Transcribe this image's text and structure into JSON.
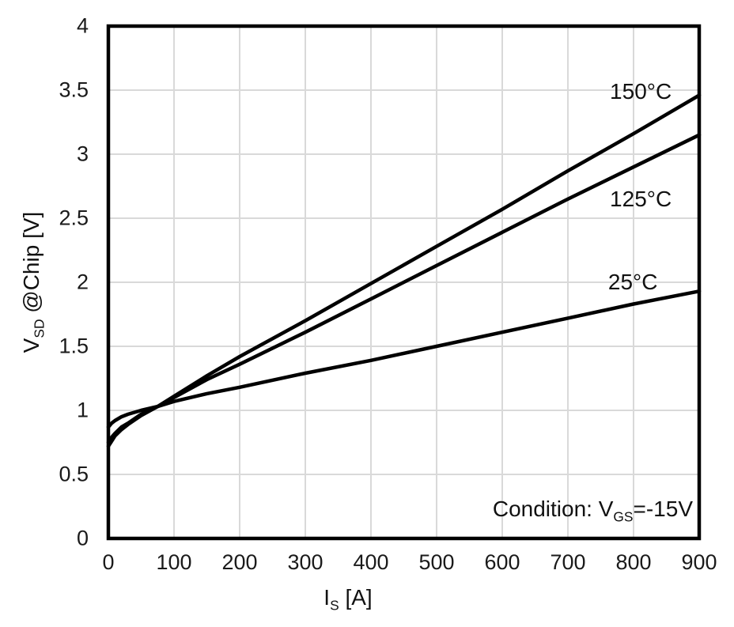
{
  "labels": {
    "ylabel": {
      "pre": "V",
      "sub": "SD",
      "post": " @Chip [V]"
    },
    "xlabel": {
      "pre": "I",
      "sub": "S",
      "post": " [A]"
    },
    "condition": {
      "pre": "Condition: V",
      "sub": "GS",
      "post": "=-15V"
    }
  },
  "colors": {
    "curve": "#000000",
    "grid": "#d9d9d9",
    "border": "#000000",
    "background": "#ffffff",
    "text": "#111111"
  },
  "chart_data": {
    "type": "line",
    "title": "",
    "xlabel": "I_S [A]",
    "ylabel": "V_SD @Chip [V]",
    "annotation": "Condition: V_GS=-15V",
    "xlim": [
      0,
      900
    ],
    "ylim": [
      0,
      4
    ],
    "xticks": [
      0,
      100,
      200,
      300,
      400,
      500,
      600,
      700,
      800,
      900
    ],
    "yticks": [
      0,
      0.5,
      1,
      1.5,
      2,
      2.5,
      3,
      3.5,
      4
    ],
    "grid": true,
    "legend_position": "inline-labels",
    "x": [
      0,
      5,
      10,
      20,
      30,
      50,
      75,
      100,
      150,
      200,
      300,
      400,
      500,
      600,
      700,
      800,
      900
    ],
    "series": [
      {
        "id": "150c",
        "name": "150°C",
        "label_x": 811,
        "label_y": 3.49,
        "values": [
          0.72,
          0.76,
          0.8,
          0.85,
          0.89,
          0.96,
          1.03,
          1.11,
          1.27,
          1.42,
          1.7,
          1.99,
          2.28,
          2.57,
          2.87,
          3.16,
          3.46
        ]
      },
      {
        "id": "125c",
        "name": "125°C",
        "label_x": 811,
        "label_y": 2.65,
        "values": [
          0.75,
          0.79,
          0.82,
          0.87,
          0.9,
          0.97,
          1.03,
          1.1,
          1.24,
          1.36,
          1.61,
          1.87,
          2.13,
          2.39,
          2.65,
          2.9,
          3.15
        ]
      },
      {
        "id": "25c",
        "name": "25°C",
        "label_x": 799,
        "label_y": 2.0,
        "values": [
          0.87,
          0.9,
          0.92,
          0.95,
          0.97,
          1.0,
          1.03,
          1.07,
          1.13,
          1.18,
          1.29,
          1.39,
          1.5,
          1.61,
          1.72,
          1.83,
          1.93
        ]
      }
    ]
  }
}
